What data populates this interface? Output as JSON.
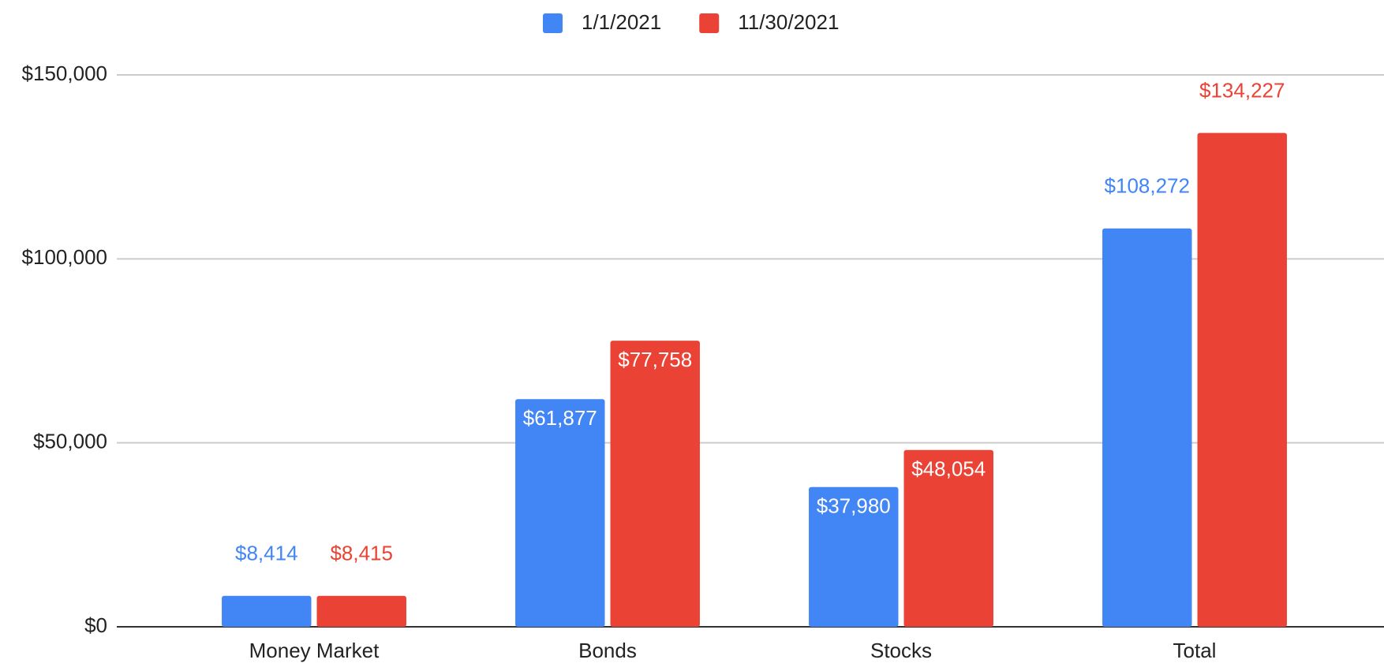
{
  "chart_data": {
    "type": "bar",
    "categories": [
      "Money Market",
      "Bonds",
      "Stocks",
      "Total"
    ],
    "series": [
      {
        "name": "1/1/2021",
        "color": "#4285f4",
        "values": [
          8414,
          61877,
          37980,
          108272
        ],
        "value_labels": [
          "$8,414",
          "$61,877",
          "$37,980",
          "$108,272"
        ]
      },
      {
        "name": "11/30/2021",
        "color": "#ea4335",
        "values": [
          8415,
          77758,
          48054,
          134227
        ],
        "value_labels": [
          "$8,415",
          "$77,758",
          "$48,054",
          "$134,227"
        ]
      }
    ],
    "ylim": [
      0,
      150000
    ],
    "yticks": [
      {
        "value": 0,
        "label": "$0"
      },
      {
        "value": 50000,
        "label": "$50,000"
      },
      {
        "value": 100000,
        "label": "$100,000"
      },
      {
        "value": 150000,
        "label": "$150,000"
      }
    ],
    "grid": true,
    "legend": "top"
  }
}
